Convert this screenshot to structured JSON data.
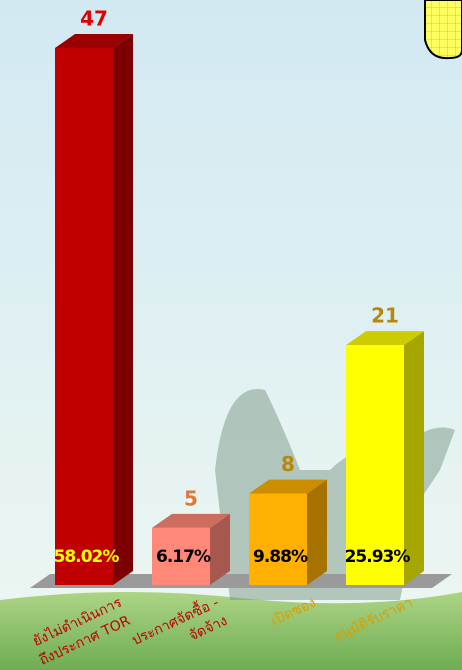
{
  "chart_data": {
    "type": "bar3d",
    "categories": [
      [
        "ยังไม่ดำเนินการ",
        "ถึงประกาศ TOR"
      ],
      [
        "ประกาศจัดซื้อ -",
        "จัดจ้าง"
      ],
      [
        "เปิดซอง"
      ],
      [
        "อนุมัติรับราคา"
      ]
    ],
    "values": [
      47,
      5,
      8,
      21
    ],
    "percentages": [
      {
        "value": 58.02,
        "label": "58.02%"
      },
      {
        "value": 6.17,
        "label": "6.17%"
      },
      {
        "value": 9.88,
        "label": "9.88%"
      },
      {
        "value": 25.93,
        "label": "25.93%"
      }
    ],
    "colors": [
      "#c00000",
      "#ff8878",
      "#ffb000",
      "#ffff00"
    ],
    "value_label_colors": [
      "#e00000",
      "#e07838",
      "#b8860b",
      "#b8860b"
    ],
    "category_label_colors": [
      "#c00000",
      "#c00000",
      "#d8a000",
      "#d8a000"
    ],
    "percent_label_colors": [
      "#ffff00",
      "#000000",
      "#000000",
      "#000000"
    ]
  }
}
